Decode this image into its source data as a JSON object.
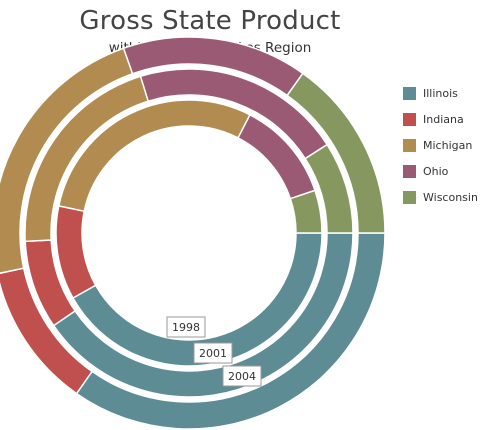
{
  "chart_data": {
    "type": "donut",
    "title": "Gross State Product",
    "subtitle": "within the Great Lakes Region",
    "categories": [
      "Illinois",
      "Indiana",
      "Michigan",
      "Ohio",
      "Wisconsin"
    ],
    "colors": [
      "#5d8c94",
      "#c0504d",
      "#b28b50",
      "#9b5a73",
      "#86985f"
    ],
    "legend_position": "right",
    "series": [
      {
        "name": "1998",
        "values": [
          25.0,
          6.8,
          17.5,
          7.3,
          3.1
        ]
      },
      {
        "name": "2001",
        "values": [
          25.0,
          5.4,
          13.0,
          12.8,
          5.6
        ]
      },
      {
        "name": "2004",
        "values": [
          25.0,
          8.6,
          16.5,
          11.0,
          10.9
        ]
      }
    ]
  }
}
